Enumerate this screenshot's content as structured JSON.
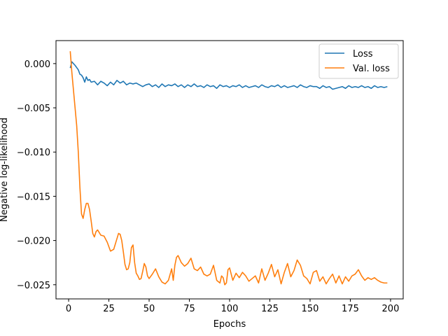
{
  "chart_data": {
    "type": "line",
    "title": "",
    "xlabel": "Epochs",
    "ylabel": "Negative log-likelihood",
    "xlim": [
      -7.85,
      207.85
    ],
    "ylim": [
      -0.0266,
      0.0026
    ],
    "xticks": [
      0,
      25,
      50,
      75,
      100,
      125,
      150,
      175,
      200
    ],
    "yticks": [
      0.0,
      -0.005,
      -0.01,
      -0.015,
      -0.02,
      -0.025
    ],
    "xtick_labels": [
      "0",
      "25",
      "50",
      "75",
      "100",
      "125",
      "150",
      "175",
      "200"
    ],
    "ytick_labels": [
      "0.000",
      "−0.005",
      "−0.010",
      "−0.015",
      "−0.020",
      "−0.025"
    ],
    "grid": false,
    "legend_position": "top-right",
    "series": [
      {
        "name": "Loss",
        "color": "#1f77b4",
        "x": [
          1,
          2,
          4,
          6,
          7,
          8,
          9,
          10,
          11,
          12,
          13,
          14,
          16,
          18,
          20,
          22,
          24,
          26,
          28,
          30,
          32,
          34,
          36,
          38,
          40,
          42,
          44,
          46,
          48,
          50,
          52,
          54,
          56,
          58,
          60,
          62,
          64,
          66,
          68,
          70,
          72,
          74,
          76,
          78,
          80,
          82,
          84,
          86,
          88,
          90,
          92,
          94,
          96,
          98,
          100,
          102,
          104,
          106,
          108,
          110,
          112,
          114,
          116,
          118,
          120,
          122,
          124,
          126,
          128,
          130,
          132,
          134,
          136,
          138,
          140,
          142,
          144,
          146,
          148,
          150,
          152,
          154,
          156,
          158,
          160,
          162,
          164,
          166,
          168,
          170,
          172,
          174,
          176,
          178,
          180,
          182,
          184,
          186,
          188,
          190,
          192,
          194,
          196,
          198
        ],
        "values": [
          -0.0005,
          0.0002,
          -0.0002,
          -0.0007,
          -0.0012,
          -0.0013,
          -0.0016,
          -0.0021,
          -0.0015,
          -0.0019,
          -0.0018,
          -0.0021,
          -0.002,
          -0.0024,
          -0.002,
          -0.0022,
          -0.0025,
          -0.0021,
          -0.0024,
          -0.0019,
          -0.0022,
          -0.002,
          -0.0024,
          -0.0022,
          -0.0023,
          -0.0022,
          -0.0024,
          -0.0026,
          -0.0024,
          -0.0023,
          -0.0026,
          -0.0024,
          -0.0027,
          -0.0023,
          -0.0026,
          -0.0024,
          -0.0025,
          -0.0023,
          -0.0026,
          -0.0024,
          -0.0027,
          -0.0024,
          -0.0026,
          -0.0023,
          -0.0026,
          -0.0025,
          -0.0027,
          -0.0024,
          -0.0026,
          -0.0025,
          -0.0028,
          -0.0024,
          -0.0026,
          -0.0025,
          -0.0027,
          -0.0025,
          -0.0026,
          -0.0024,
          -0.0027,
          -0.0025,
          -0.0027,
          -0.0026,
          -0.0025,
          -0.0027,
          -0.0024,
          -0.0026,
          -0.0027,
          -0.0025,
          -0.0026,
          -0.0024,
          -0.0027,
          -0.0025,
          -0.0027,
          -0.0026,
          -0.0025,
          -0.0027,
          -0.0024,
          -0.0026,
          -0.0027,
          -0.0025,
          -0.0026,
          -0.0026,
          -0.0028,
          -0.0025,
          -0.0027,
          -0.0026,
          -0.0029,
          -0.0028,
          -0.0027,
          -0.0026,
          -0.0028,
          -0.0025,
          -0.0027,
          -0.0026,
          -0.0027,
          -0.0025,
          -0.0027,
          -0.0026,
          -0.0028,
          -0.0025,
          -0.0027,
          -0.0026,
          -0.0027,
          -0.0026
        ]
      },
      {
        "name": "Val. loss",
        "color": "#ff7f0e",
        "x": [
          1,
          2,
          3,
          4,
          5,
          6,
          7,
          8,
          9,
          10,
          11,
          12,
          13,
          14,
          15,
          16,
          17,
          18,
          20,
          22,
          24,
          26,
          28,
          30,
          31,
          32,
          33,
          34,
          35,
          36,
          37,
          38,
          39,
          40,
          41,
          42,
          43,
          44,
          45,
          46,
          47,
          48,
          49,
          50,
          52,
          54,
          56,
          58,
          60,
          62,
          64,
          65,
          66,
          67,
          68,
          70,
          72,
          74,
          76,
          78,
          80,
          82,
          84,
          86,
          88,
          90,
          92,
          94,
          95,
          96,
          97,
          98,
          99,
          100,
          102,
          104,
          106,
          108,
          110,
          112,
          114,
          116,
          118,
          120,
          122,
          124,
          126,
          128,
          130,
          132,
          134,
          136,
          138,
          140,
          142,
          144,
          146,
          148,
          150,
          152,
          154,
          156,
          158,
          160,
          162,
          164,
          166,
          168,
          170,
          172,
          174,
          176,
          178,
          180,
          182,
          184,
          186,
          188,
          190,
          192,
          194,
          196,
          198
        ],
        "values": [
          0.0014,
          -0.001,
          -0.003,
          -0.005,
          -0.007,
          -0.01,
          -0.014,
          -0.017,
          -0.0175,
          -0.0165,
          -0.0158,
          -0.0158,
          -0.0165,
          -0.0178,
          -0.0192,
          -0.0196,
          -0.019,
          -0.0188,
          -0.0194,
          -0.0195,
          -0.0202,
          -0.0212,
          -0.021,
          -0.0198,
          -0.0192,
          -0.0193,
          -0.02,
          -0.0213,
          -0.0227,
          -0.0233,
          -0.0232,
          -0.0225,
          -0.0208,
          -0.0205,
          -0.0225,
          -0.0237,
          -0.024,
          -0.0244,
          -0.0243,
          -0.0235,
          -0.0226,
          -0.023,
          -0.024,
          -0.0243,
          -0.0238,
          -0.0232,
          -0.0241,
          -0.0247,
          -0.0249,
          -0.0245,
          -0.0232,
          -0.0245,
          -0.0228,
          -0.0219,
          -0.0217,
          -0.0225,
          -0.0229,
          -0.0226,
          -0.022,
          -0.0232,
          -0.0234,
          -0.023,
          -0.0238,
          -0.024,
          -0.0238,
          -0.0228,
          -0.0245,
          -0.0248,
          -0.024,
          -0.0242,
          -0.025,
          -0.0248,
          -0.0233,
          -0.0231,
          -0.0245,
          -0.0237,
          -0.0242,
          -0.0236,
          -0.024,
          -0.0246,
          -0.0243,
          -0.024,
          -0.0248,
          -0.0232,
          -0.0245,
          -0.0237,
          -0.0227,
          -0.0241,
          -0.0233,
          -0.0249,
          -0.0236,
          -0.0226,
          -0.0241,
          -0.0234,
          -0.0222,
          -0.0228,
          -0.024,
          -0.0243,
          -0.0249,
          -0.0236,
          -0.0234,
          -0.0246,
          -0.0241,
          -0.0249,
          -0.0243,
          -0.0238,
          -0.0248,
          -0.024,
          -0.0249,
          -0.0241,
          -0.0246,
          -0.024,
          -0.0238,
          -0.0233,
          -0.024,
          -0.0245,
          -0.0242,
          -0.0244,
          -0.0242,
          -0.0245,
          -0.0247,
          -0.0248,
          -0.0248
        ]
      }
    ]
  }
}
